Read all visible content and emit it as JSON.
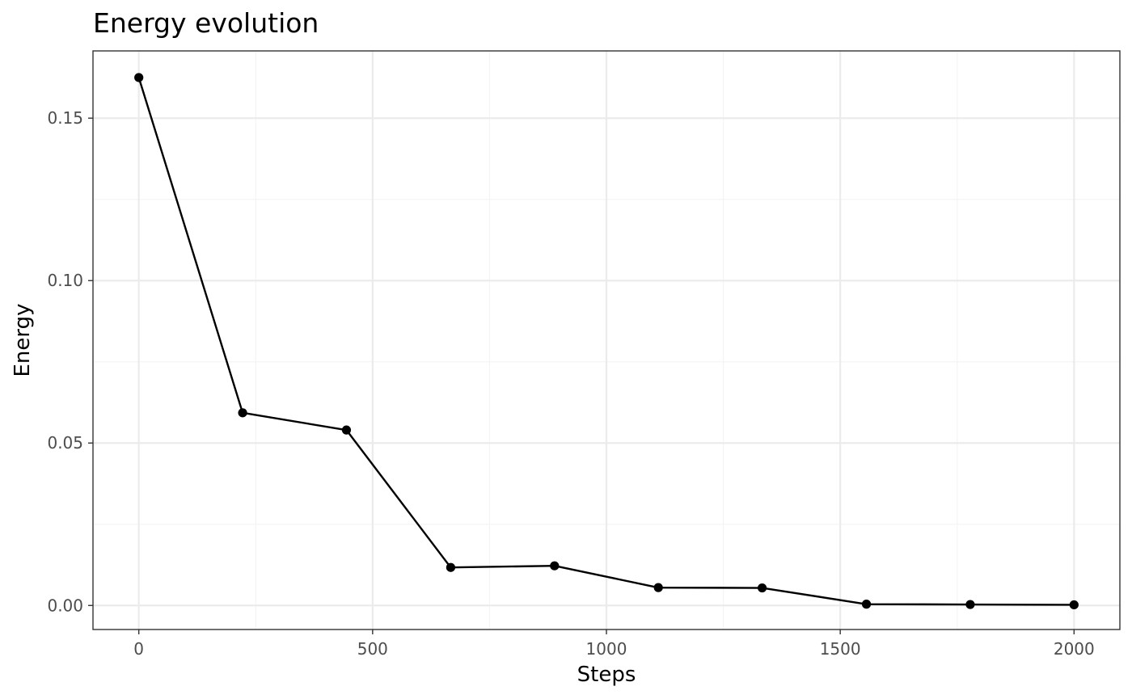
{
  "chart_data": {
    "type": "line",
    "title": "Energy evolution",
    "xlabel": "Steps",
    "ylabel": "Energy",
    "x": [
      0,
      222,
      444,
      667,
      889,
      1111,
      1333,
      1556,
      1778,
      2000
    ],
    "series": [
      {
        "values": [
          0.1625,
          0.0593,
          0.054,
          0.0117,
          0.0122,
          0.0055,
          0.0054,
          0.0004,
          0.0003,
          0.0002
        ]
      }
    ],
    "xlim": [
      -98,
      2098
    ],
    "ylim": [
      -0.0074,
      0.1707
    ],
    "xticks": [
      0,
      500,
      1000,
      1500,
      2000
    ],
    "xtick_labels": [
      "0",
      "500",
      "1000",
      "1500",
      "2000"
    ],
    "yticks": [
      0.0,
      0.05,
      0.1,
      0.15
    ],
    "ytick_labels": [
      "0.00",
      "0.05",
      "0.10",
      "0.15"
    ],
    "grid": true,
    "line_color": "#000000",
    "point_color": "#000000"
  }
}
